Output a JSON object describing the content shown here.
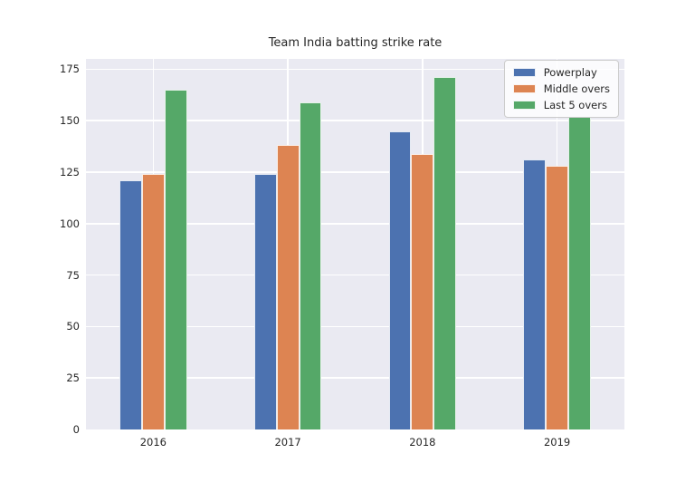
{
  "title": "Team India batting strike rate",
  "colors": {
    "figure_background": "#ffffff",
    "axes_background": "#eaeaf2",
    "gridline": "#ffffff",
    "text": "#262626",
    "powerplay": "#4c72b0",
    "middle_overs": "#dd8452",
    "last_5_overs": "#55a868"
  },
  "chart_data": {
    "type": "bar",
    "title": "Team India batting strike rate",
    "xlabel": "",
    "ylabel": "",
    "categories": [
      "2016",
      "2017",
      "2018",
      "2019"
    ],
    "series": [
      {
        "name": "Powerplay",
        "color": "#4c72b0",
        "values": [
          121,
          124,
          145,
          131
        ]
      },
      {
        "name": "Middle overs",
        "color": "#dd8452",
        "values": [
          124,
          138,
          134,
          128
        ]
      },
      {
        "name": "Last 5 overs",
        "color": "#55a868",
        "values": [
          165,
          159,
          171,
          152
        ]
      }
    ],
    "yticks": [
      0,
      25,
      50,
      75,
      100,
      125,
      150,
      175
    ],
    "ylim": [
      0,
      180
    ],
    "grid": true,
    "legend_position": "upper right"
  }
}
